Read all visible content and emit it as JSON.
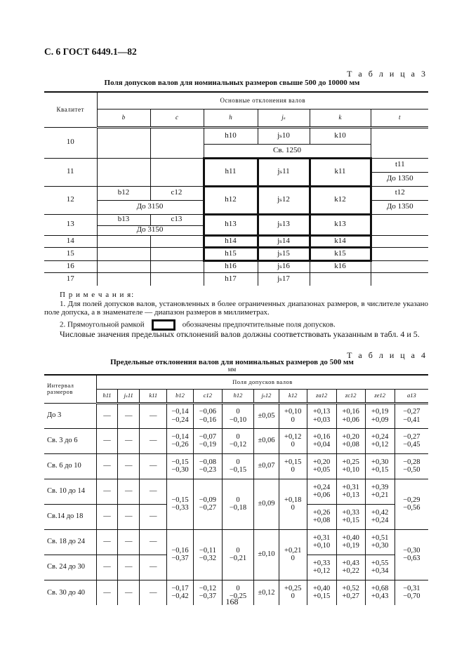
{
  "header": "С. 6 ГОСТ 6449.1—82",
  "table3": {
    "label": "Т а б л и ц а  3",
    "title": "Поля допусков валов для номинальных размеров свыше 500 до 10000 мм",
    "col_kvalitet": "Квалитет",
    "col_group": "Основные отклонения валов",
    "cols": [
      "b",
      "c",
      "h",
      "jₛ",
      "k",
      "t"
    ],
    "q": [
      "10",
      "11",
      "12",
      "13",
      "14",
      "15",
      "16",
      "17"
    ],
    "r10": {
      "h": "h10",
      "js": "jₛ10",
      "k": "k10",
      "range": "Св. 1250"
    },
    "r11": {
      "h": "h11",
      "js": "jₛ11",
      "k": "k11",
      "t": "t11",
      "t_range": "До 1350"
    },
    "r12": {
      "b": "b12",
      "c": "c12",
      "bc_range": "До 3150",
      "h": "h12",
      "js": "jₛ12",
      "k": "k12",
      "t": "t12",
      "t_range": "До 1350"
    },
    "r13": {
      "b": "b13",
      "c": "c13",
      "bc_range": "До 3150",
      "h": "h13",
      "js": "jₛ13",
      "k": "k13"
    },
    "r14": {
      "h": "h14",
      "js": "jₛ14",
      "k": "k14"
    },
    "r15": {
      "h": "h15",
      "js": "jₛ15",
      "k": "k15"
    },
    "r16": {
      "h": "h16",
      "js": "jₛ16",
      "k": "k16"
    },
    "r17": {
      "h": "h17",
      "js": "jₛ17"
    }
  },
  "notes": {
    "heading": "П р и м е ч а н и я:",
    "note1": "1. Для полей допусков валов, установленных в более ограниченных диапазонах размеров, в числителе указано поле допуска, а в знаменателе — диапазон размеров в миллиметрах.",
    "note2_before": "2. Прямоугольной рамкой",
    "note2_after": "обозначены предпочтительные поля допусков."
  },
  "paragraph": "Числовые значения предельных отклонений валов должны соответствовать указанным в табл. 4 и 5.",
  "table4": {
    "label": "Т а б л и ц а  4",
    "title": "Предельные отклонения валов для номинальных размеров до 500 мм",
    "unit": "мм",
    "col_interval": "Интервал размеров",
    "col_group": "Поля допусков валов",
    "cols": [
      "h11",
      "jₛ11",
      "k11",
      "b12",
      "c12",
      "h12",
      "jₛ12",
      "k12",
      "za12",
      "zc12",
      "ze12",
      "a13"
    ],
    "rows": [
      {
        "interval": "До 3",
        "values": [
          "—",
          "—",
          "—",
          "−0,14\n−0,24",
          "−0,06\n−0,16",
          "0\n−0,10",
          "±0,05",
          "+0,10\n0",
          "+0,13\n+0,03",
          "+0,16\n+0,06",
          "+0,19\n+0,09",
          "−0,27\n−0,41"
        ]
      },
      {
        "interval": "Св. 3 до 6",
        "values": [
          "—",
          "—",
          "—",
          "−0,14\n−0,26",
          "−0,07\n−0,19",
          "0\n−0,12",
          "±0,06",
          "+0,12\n0",
          "+0,16\n+0,04",
          "+0,20\n+0,08",
          "+0,24\n+0,12",
          "−0,27\n−0,45"
        ]
      },
      {
        "interval": "Св. 6 до 10",
        "values": [
          "—",
          "—",
          "—",
          "−0,15\n−0,30",
          "−0,08\n−0,23",
          "0\n−0,15",
          "±0,07",
          "+0,15\n0",
          "+0,20\n+0,05",
          "+0,25\n+0,10",
          "+0,30\n+0,15",
          "−0,28\n−0,50"
        ]
      },
      {
        "group": true,
        "shared": {
          "b12": "−0,15\n−0,33",
          "c12": "−0,09\n−0,27",
          "h12": "0\n−0,18",
          "js12": "±0,09",
          "k12": "+0,18\n0",
          "a13": "−0,29\n−0,56"
        },
        "subrows": [
          {
            "interval": "Св. 10 до 14",
            "h11": "—",
            "js11": "—",
            "k11": "—",
            "za12": "+0,24\n+0,06",
            "zc12": "+0,31\n+0,13",
            "ze12": "+0,39\n+0,21"
          },
          {
            "interval": "Св.14 до 18",
            "h11": "—",
            "js11": "—",
            "k11": "—",
            "za12": "+0,26\n+0,08",
            "zc12": "+0,33\n+0,15",
            "ze12": "+0,42\n+0,24"
          }
        ]
      },
      {
        "group": true,
        "shared": {
          "b12": "−0,16\n−0,37",
          "c12": "−0,11\n−0,32",
          "h12": "0\n−0,21",
          "js12": "±0,10",
          "k12": "+0,21\n0",
          "a13": "−0,30\n−0,63"
        },
        "subrows": [
          {
            "interval": "Св. 18 до 24",
            "h11": "—",
            "js11": "—",
            "k11": "—",
            "za12": "+0,31\n+0,10",
            "zc12": "+0,40\n+0,19",
            "ze12": "+0,51\n+0,30"
          },
          {
            "interval": "Св. 24 до 30",
            "h11": "—",
            "js11": "—",
            "k11": "—",
            "za12": "+0,33\n+0,12",
            "zc12": "+0,43\n+0,22",
            "ze12": "+0,55\n+0,34"
          }
        ]
      },
      {
        "interval": "Св. 30 до 40",
        "values": [
          "—",
          "—",
          "—",
          "−0,17\n−0,42",
          "−0,12\n−0,37",
          "0\n−0,25",
          "±0,12",
          "+0,25\n0",
          "+0,40\n+0,15",
          "+0,52\n+0,27",
          "+0,68\n+0,43",
          "−0,31\n−0,70"
        ]
      }
    ]
  },
  "page_number": "168"
}
